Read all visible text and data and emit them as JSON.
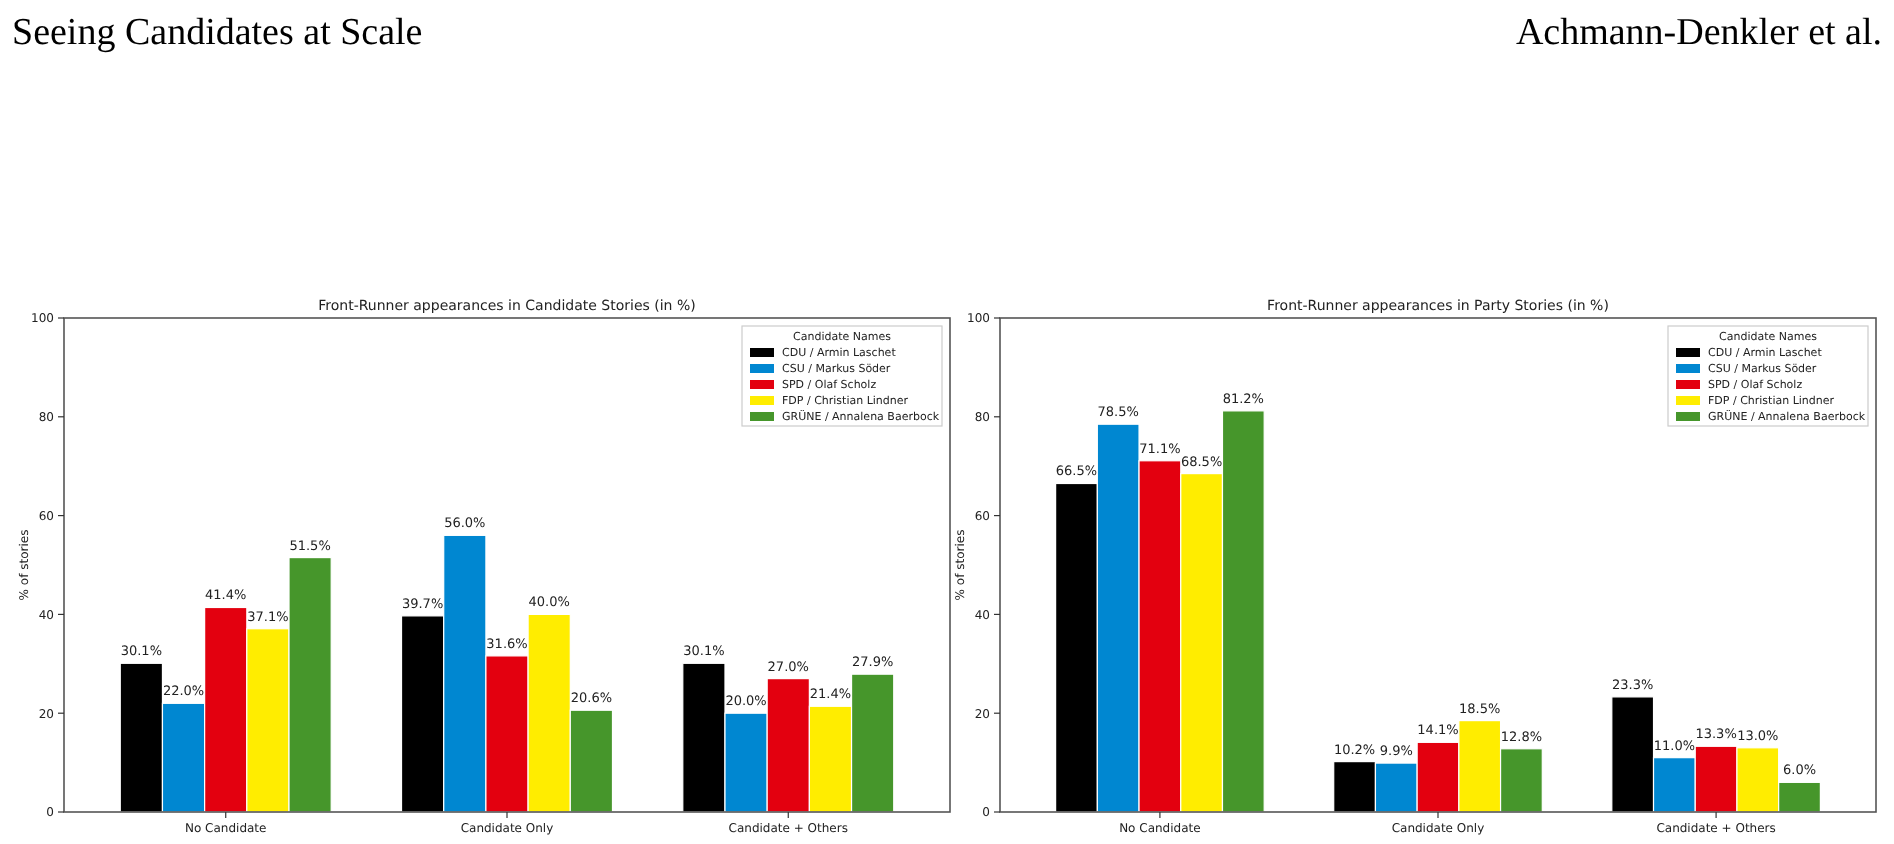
{
  "chart_data": [
    {
      "type": "bar",
      "title": "Front-Runner appearances in Candidate Stories (in %)",
      "ylabel": "% of stories",
      "legend_title": "Candidate Names",
      "annotations": [
        "Seeing Candidates at Scale",
        "Achmann-Denkler et al."
      ],
      "categories": [
        "No Candidate",
        "Candidate Only",
        "Candidate + Others"
      ],
      "ylim": [
        0,
        100
      ],
      "yticks": [
        0,
        20,
        40,
        60,
        80,
        100
      ],
      "grid": false,
      "legend": "top right",
      "series": [
        {
          "name": "CDU / Armin Laschet",
          "color": "#000000",
          "values": [
            30.1,
            39.7,
            30.1
          ],
          "value_labels": [
            "30.1%",
            "39.7%",
            "30.1%"
          ]
        },
        {
          "name": "CSU / Markus Söder",
          "color": "#0087d1",
          "values": [
            22.0,
            56.0,
            20.0
          ],
          "value_labels": [
            "22.0%",
            "56.0%",
            "20.0%"
          ]
        },
        {
          "name": "SPD / Olaf Scholz",
          "color": "#e3000f",
          "values": [
            41.4,
            31.6,
            27.0
          ],
          "value_labels": [
            "41.4%",
            "31.6%",
            "27.0%"
          ]
        },
        {
          "name": "FDP / Christian Lindner",
          "color": "#ffed00",
          "values": [
            37.1,
            40.0,
            21.4
          ],
          "value_labels": [
            "37.1%",
            "40.0%",
            "21.4%"
          ]
        },
        {
          "name": "GRÜNE / Annalena Baerbock",
          "color": "#46962b",
          "values": [
            51.5,
            20.6,
            27.9
          ],
          "value_labels": [
            "51.5%",
            "20.6%",
            "27.9%"
          ]
        }
      ]
    },
    {
      "type": "bar",
      "title": "Front-Runner appearances in Party Stories (in %)",
      "ylabel": "% of stories",
      "legend_title": "Candidate Names",
      "categories": [
        "No Candidate",
        "Candidate Only",
        "Candidate + Others"
      ],
      "ylim": [
        0,
        100
      ],
      "yticks": [
        0,
        20,
        40,
        60,
        80,
        100
      ],
      "grid": false,
      "legend": "top right",
      "series": [
        {
          "name": "CDU / Armin Laschet",
          "color": "#000000",
          "values": [
            66.5,
            10.2,
            23.3
          ],
          "value_labels": [
            "66.5%",
            "10.2%",
            "23.3%"
          ]
        },
        {
          "name": "CSU / Markus Söder",
          "color": "#0087d1",
          "values": [
            78.5,
            9.9,
            11.0
          ],
          "value_labels": [
            "78.5%",
            "9.9%",
            "11.0%"
          ]
        },
        {
          "name": "SPD / Olaf Scholz",
          "color": "#e3000f",
          "values": [
            71.1,
            14.1,
            13.3
          ],
          "value_labels": [
            "71.1%",
            "14.1%",
            "13.3%"
          ]
        },
        {
          "name": "FDP / Christian Lindner",
          "color": "#ffed00",
          "values": [
            68.5,
            18.5,
            13.0
          ],
          "value_labels": [
            "68.5%",
            "18.5%",
            "13.0%"
          ]
        },
        {
          "name": "GRÜNE / Annalena Baerbock",
          "color": "#46962b",
          "values": [
            81.2,
            12.8,
            6.0
          ],
          "value_labels": [
            "81.2%",
            "12.8%",
            "6.0%"
          ]
        }
      ]
    }
  ]
}
